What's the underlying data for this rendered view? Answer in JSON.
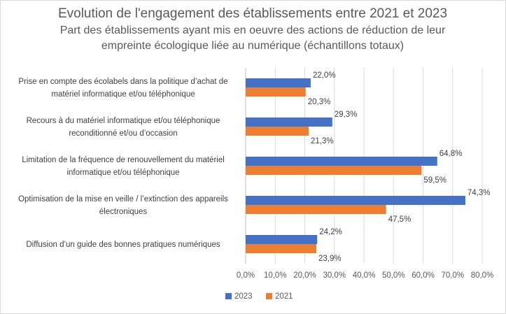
{
  "chart_data": {
    "type": "bar",
    "orientation": "horizontal",
    "title": "Evolution de l'engagement des établissements entre 2021 et 2023",
    "subtitle_lines": [
      "Part des établissements ayant mis en oeuvre des actions de réduction de leur",
      "empreinte écologique liée au numérique (échantillons totaux)"
    ],
    "categories": [
      [
        "Prise en compte des écolabels dans la politique  d’achat de",
        "matériel informatique et/ou téléphonique"
      ],
      [
        "Recours à du matériel informatique et/ou téléphonique",
        "reconditionné et/ou d’occasion"
      ],
      [
        "Limitation de la fréquence de renouvellement du matériel",
        "informatique et/ou téléphonique"
      ],
      [
        "Optimisation de la mise en veille / l’extinction des appareils",
        "électroniques"
      ],
      [
        "Diffusion d’un guide des bonnes pratiques numériques"
      ]
    ],
    "series": [
      {
        "name": "2023",
        "color": "#4472c4",
        "values": [
          22.0,
          29.3,
          64.8,
          74.3,
          24.2
        ],
        "labels": [
          "22,0%",
          "29,3%",
          "64,8%",
          "74,3%",
          "24,2%"
        ]
      },
      {
        "name": "2021",
        "color": "#ed7d31",
        "values": [
          20.3,
          21.3,
          59.5,
          47.5,
          23.9
        ],
        "labels": [
          "20,3%",
          "21,3%",
          "59,5%",
          "47,5%",
          "23,9%"
        ]
      }
    ],
    "xlim": [
      0,
      80
    ],
    "x_ticks": [
      "0,0%",
      "10,0%",
      "20,0%",
      "30,0%",
      "40,0%",
      "50,0%",
      "60,0%",
      "70,0%",
      "80,0%"
    ],
    "grid": true,
    "legend_position": "bottom"
  }
}
